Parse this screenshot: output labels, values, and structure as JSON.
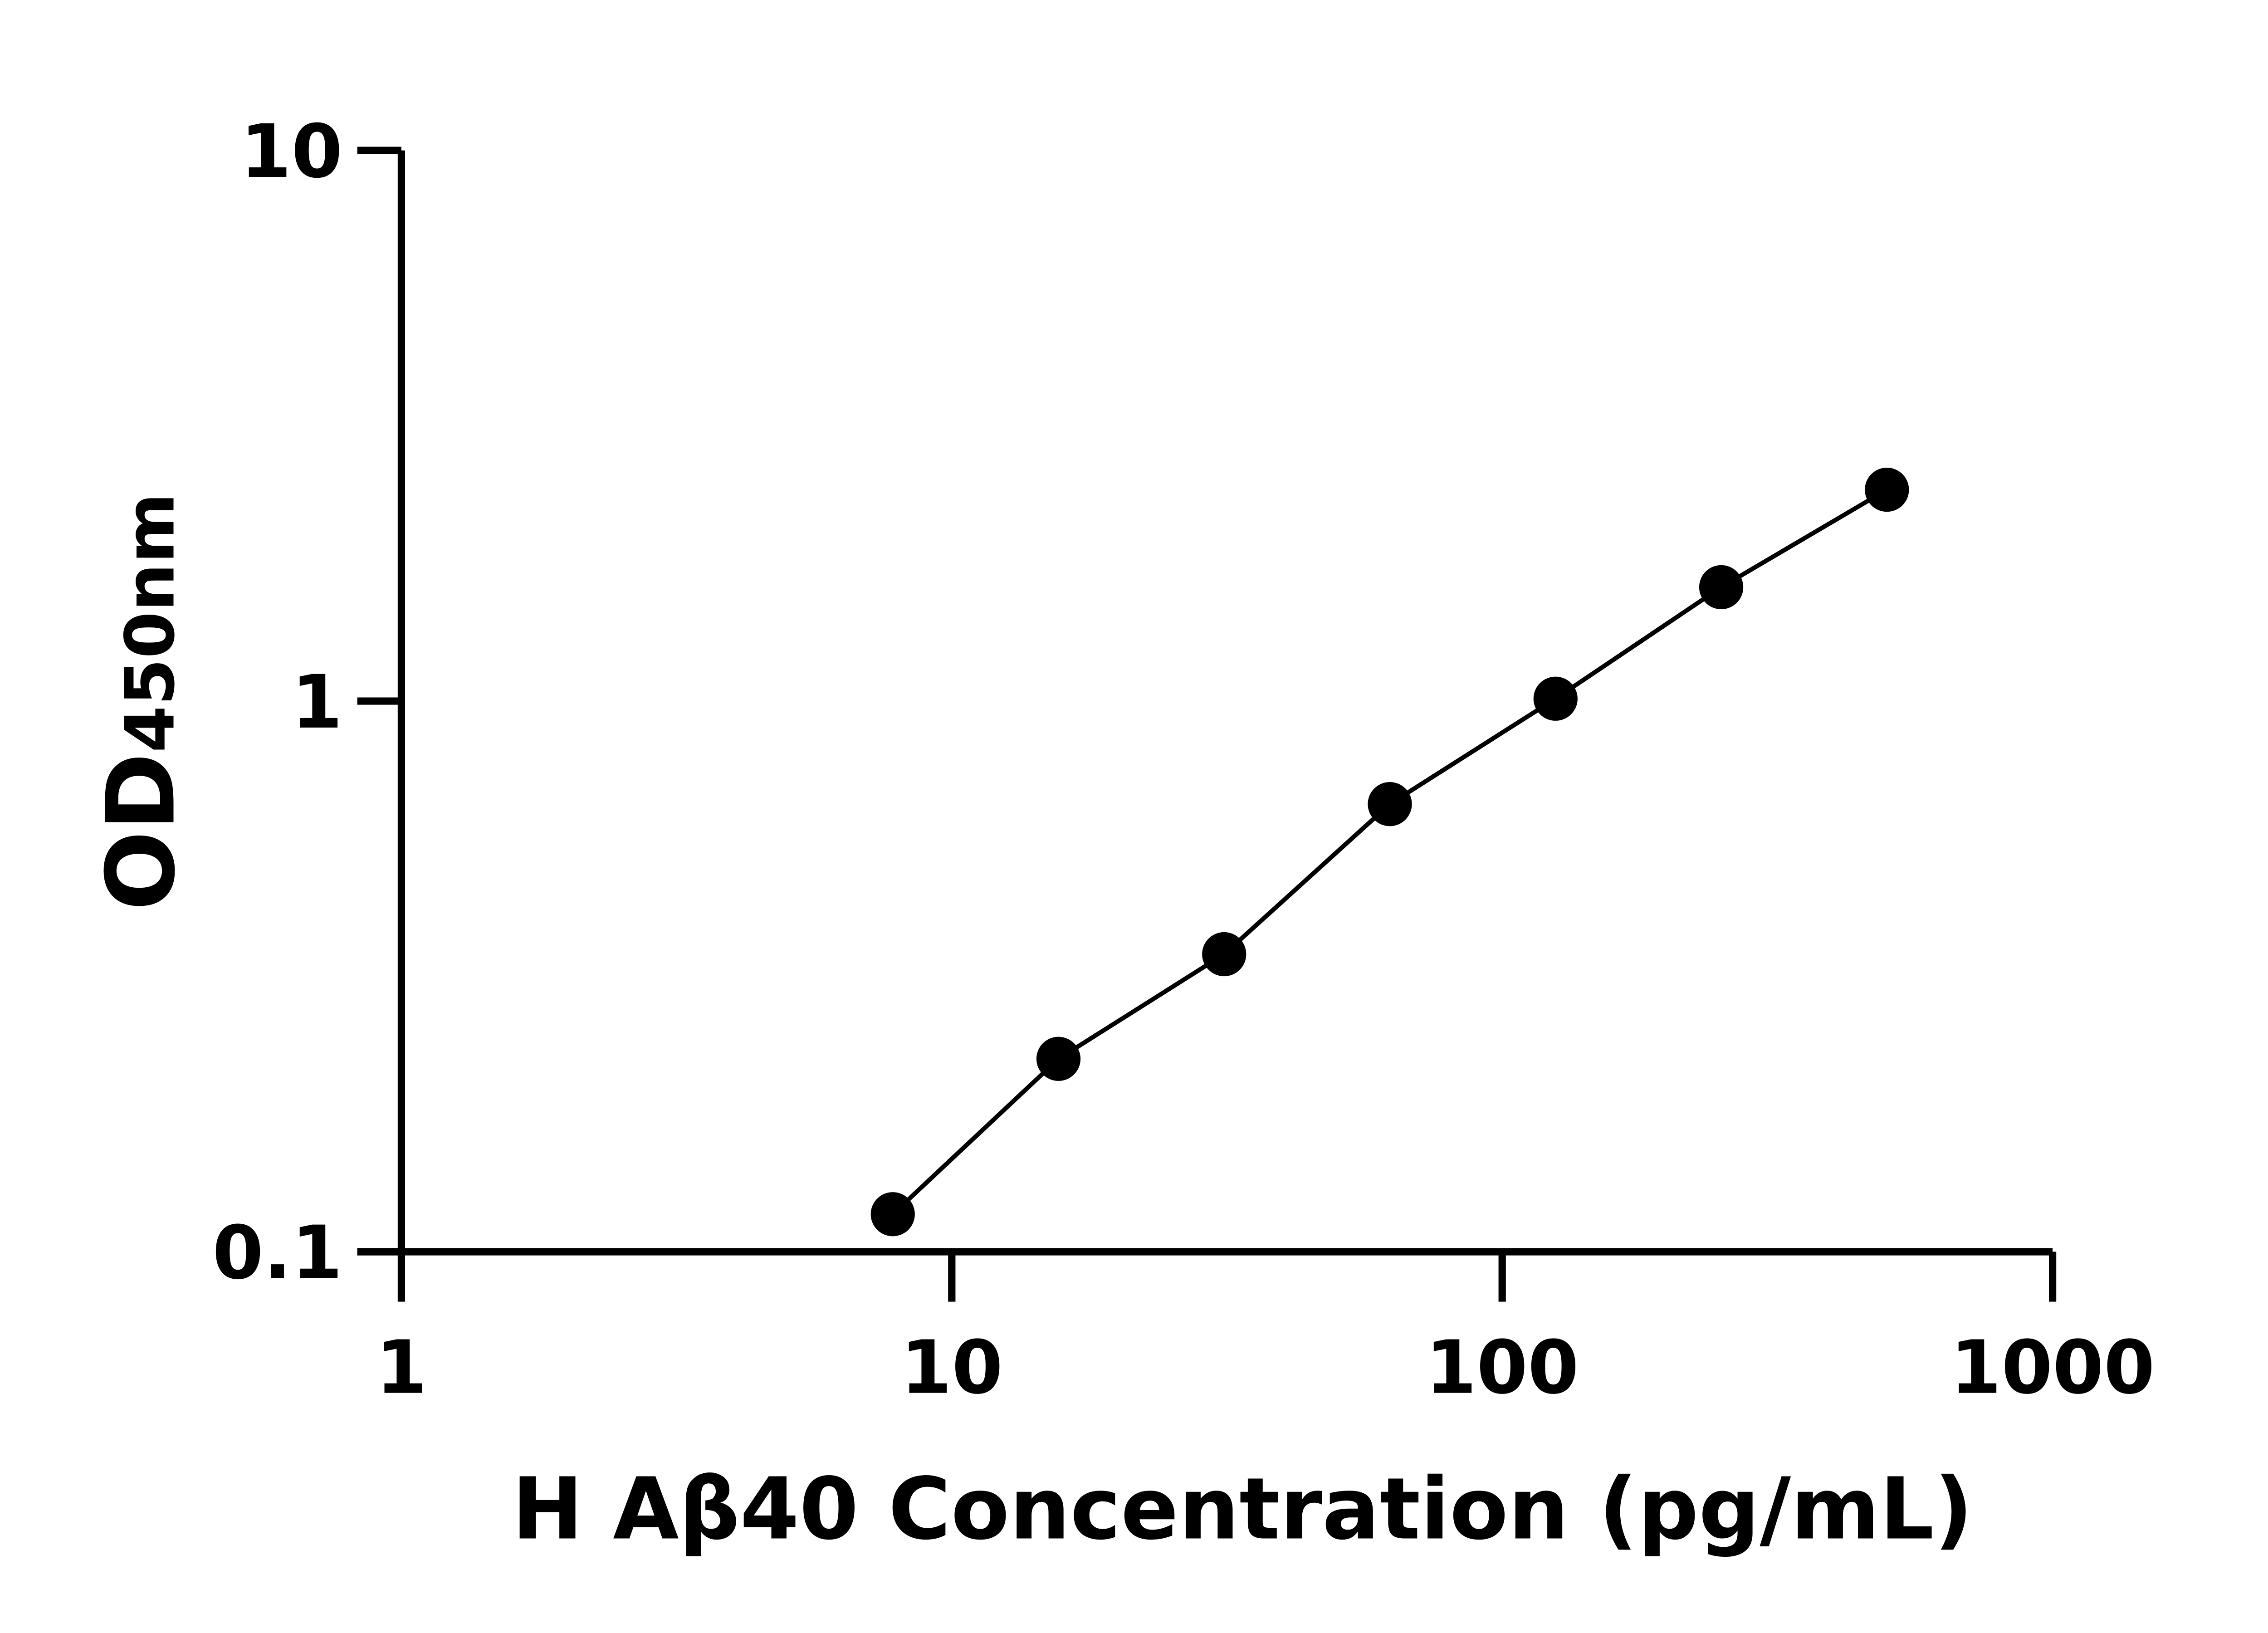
{
  "chart_data": {
    "type": "scatter",
    "title": "",
    "xlabel": "H Aβ40 Concentration (pg/mL)",
    "ylabel_main": "OD",
    "ylabel_sub": "450nm",
    "x_scale": "log",
    "y_scale": "log",
    "xlim": [
      1,
      1000
    ],
    "ylim": [
      0.1,
      10
    ],
    "x_ticks": [
      1,
      10,
      100,
      1000
    ],
    "x_tick_labels": [
      "1",
      "10",
      "100",
      "1000"
    ],
    "y_ticks": [
      0.1,
      1,
      10
    ],
    "y_tick_labels": [
      "0.1",
      "1",
      "10"
    ],
    "grid": false,
    "legend": "none",
    "colors": {
      "points": "#000000",
      "line": "#000000",
      "axes": "#000000"
    },
    "series": [
      {
        "x": [
          7.8125,
          15.625,
          31.25,
          62.5,
          125,
          250,
          500
        ],
        "y": [
          0.117,
          0.224,
          0.347,
          0.65,
          1.01,
          1.61,
          2.42
        ],
        "fit_line": true
      }
    ]
  }
}
